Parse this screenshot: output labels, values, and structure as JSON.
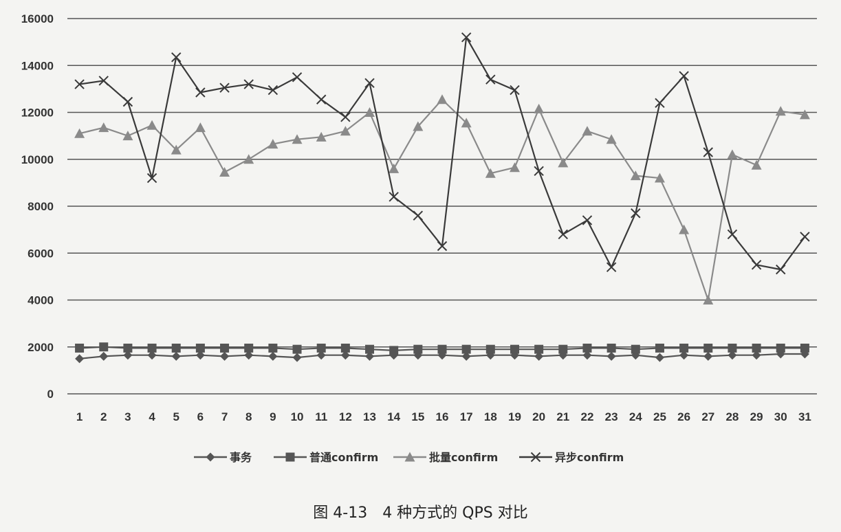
{
  "chart_data": {
    "type": "line",
    "title": "",
    "xlabel": "",
    "ylabel": "",
    "ylim": [
      0,
      16000
    ],
    "yticks": [
      0,
      2000,
      4000,
      6000,
      8000,
      10000,
      12000,
      14000,
      16000
    ],
    "grid": true,
    "legend_position": "bottom",
    "categories": [
      "1",
      "2",
      "3",
      "4",
      "5",
      "6",
      "7",
      "8",
      "9",
      "10",
      "11",
      "12",
      "13",
      "14",
      "15",
      "16",
      "17",
      "18",
      "19",
      "20",
      "21",
      "22",
      "23",
      "24",
      "25",
      "26",
      "27",
      "28",
      "29",
      "30",
      "31"
    ],
    "series": [
      {
        "name": "事务",
        "marker": "diamond",
        "color": "#555555",
        "values": [
          1500,
          1600,
          1650,
          1650,
          1600,
          1650,
          1600,
          1650,
          1600,
          1550,
          1650,
          1650,
          1600,
          1650,
          1650,
          1650,
          1600,
          1650,
          1650,
          1600,
          1650,
          1650,
          1600,
          1650,
          1550,
          1650,
          1600,
          1650,
          1650,
          1700,
          1700
        ]
      },
      {
        "name": "普通confirm",
        "marker": "square",
        "color": "#555555",
        "values": [
          1950,
          2000,
          1950,
          1950,
          1950,
          1950,
          1950,
          1950,
          1950,
          1900,
          1950,
          1950,
          1900,
          1850,
          1900,
          1900,
          1900,
          1900,
          1900,
          1900,
          1900,
          1950,
          1950,
          1900,
          1950,
          1950,
          1950,
          1950,
          1950,
          1950,
          1950
        ]
      },
      {
        "name": "批量confirm",
        "marker": "triangle",
        "color": "#8a8a8a",
        "values": [
          11100,
          11350,
          11000,
          11450,
          10400,
          11350,
          9450,
          10000,
          10650,
          10850,
          10950,
          11200,
          12000,
          9600,
          11400,
          12550,
          11550,
          9400,
          9650,
          12150,
          9850,
          11200,
          10850,
          9300,
          9200,
          7000,
          4000,
          10200,
          9750,
          12050,
          11900
        ]
      },
      {
        "name": "异步confirm",
        "marker": "x",
        "color": "#3a3a3a",
        "values": [
          13200,
          13350,
          12450,
          9200,
          14350,
          12850,
          13050,
          13200,
          12950,
          13500,
          12550,
          11800,
          13250,
          8400,
          7600,
          6300,
          15200,
          13400,
          12950,
          9500,
          6800,
          7400,
          5400,
          7700,
          12400,
          13550,
          10300,
          6800,
          5500,
          5300,
          6700
        ]
      }
    ]
  },
  "caption": "图 4-13　4 种方式的 QPS 对比"
}
